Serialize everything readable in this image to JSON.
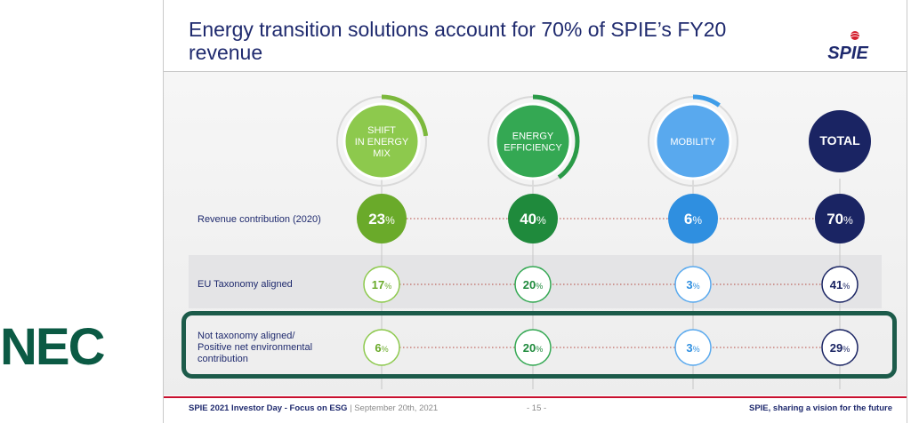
{
  "slide": {
    "title": "Energy transition solutions account for 70% of SPIE’s FY20 revenue",
    "brand_logo": "SPIE",
    "footer": {
      "event": "SPIE 2021 Investor Day - Focus on ESG",
      "separator": "|",
      "date": "September 20th, 2021",
      "page": "- 15 -",
      "tagline": "SPIE, sharing a vision for the future"
    }
  },
  "overlay_logo": "NEC",
  "columns": [
    {
      "header_lines": [
        "SHIFT",
        "IN ENERGY",
        "MIX"
      ],
      "color": "#6aaa2a",
      "light": "#8dc94d",
      "ring": "#7cb83c",
      "arc_fraction": 0.23
    },
    {
      "header_lines": [
        "ENERGY",
        "EFFICIENCY"
      ],
      "color": "#1f8a3c",
      "light": "#34a853",
      "ring": "#2a9a47",
      "arc_fraction": 0.4
    },
    {
      "header_lines": [
        "MOBILITY"
      ],
      "color": "#2f8fe0",
      "light": "#59a9ee",
      "ring": "#3f9de8",
      "arc_fraction": 0.06
    },
    {
      "header_lines": [
        "TOTAL"
      ],
      "color": "#1a2463",
      "light": "#1a2463",
      "ring": "none",
      "arc_fraction": 0
    }
  ],
  "rows": [
    {
      "label_lines": [
        "Revenue contribution (2020)"
      ],
      "values": [
        "23",
        "40",
        "6",
        "70"
      ],
      "style": "filled"
    },
    {
      "label_lines": [
        "EU Taxonomy aligned"
      ],
      "values": [
        "17",
        "20",
        "3",
        "41"
      ],
      "style": "outline"
    },
    {
      "label_lines": [
        "Not taxonomy aligned/",
        "Positive net environmental",
        "contribution"
      ],
      "values": [
        "6",
        "20",
        "3",
        "29"
      ],
      "style": "outline"
    }
  ],
  "percent_sign": "%"
}
